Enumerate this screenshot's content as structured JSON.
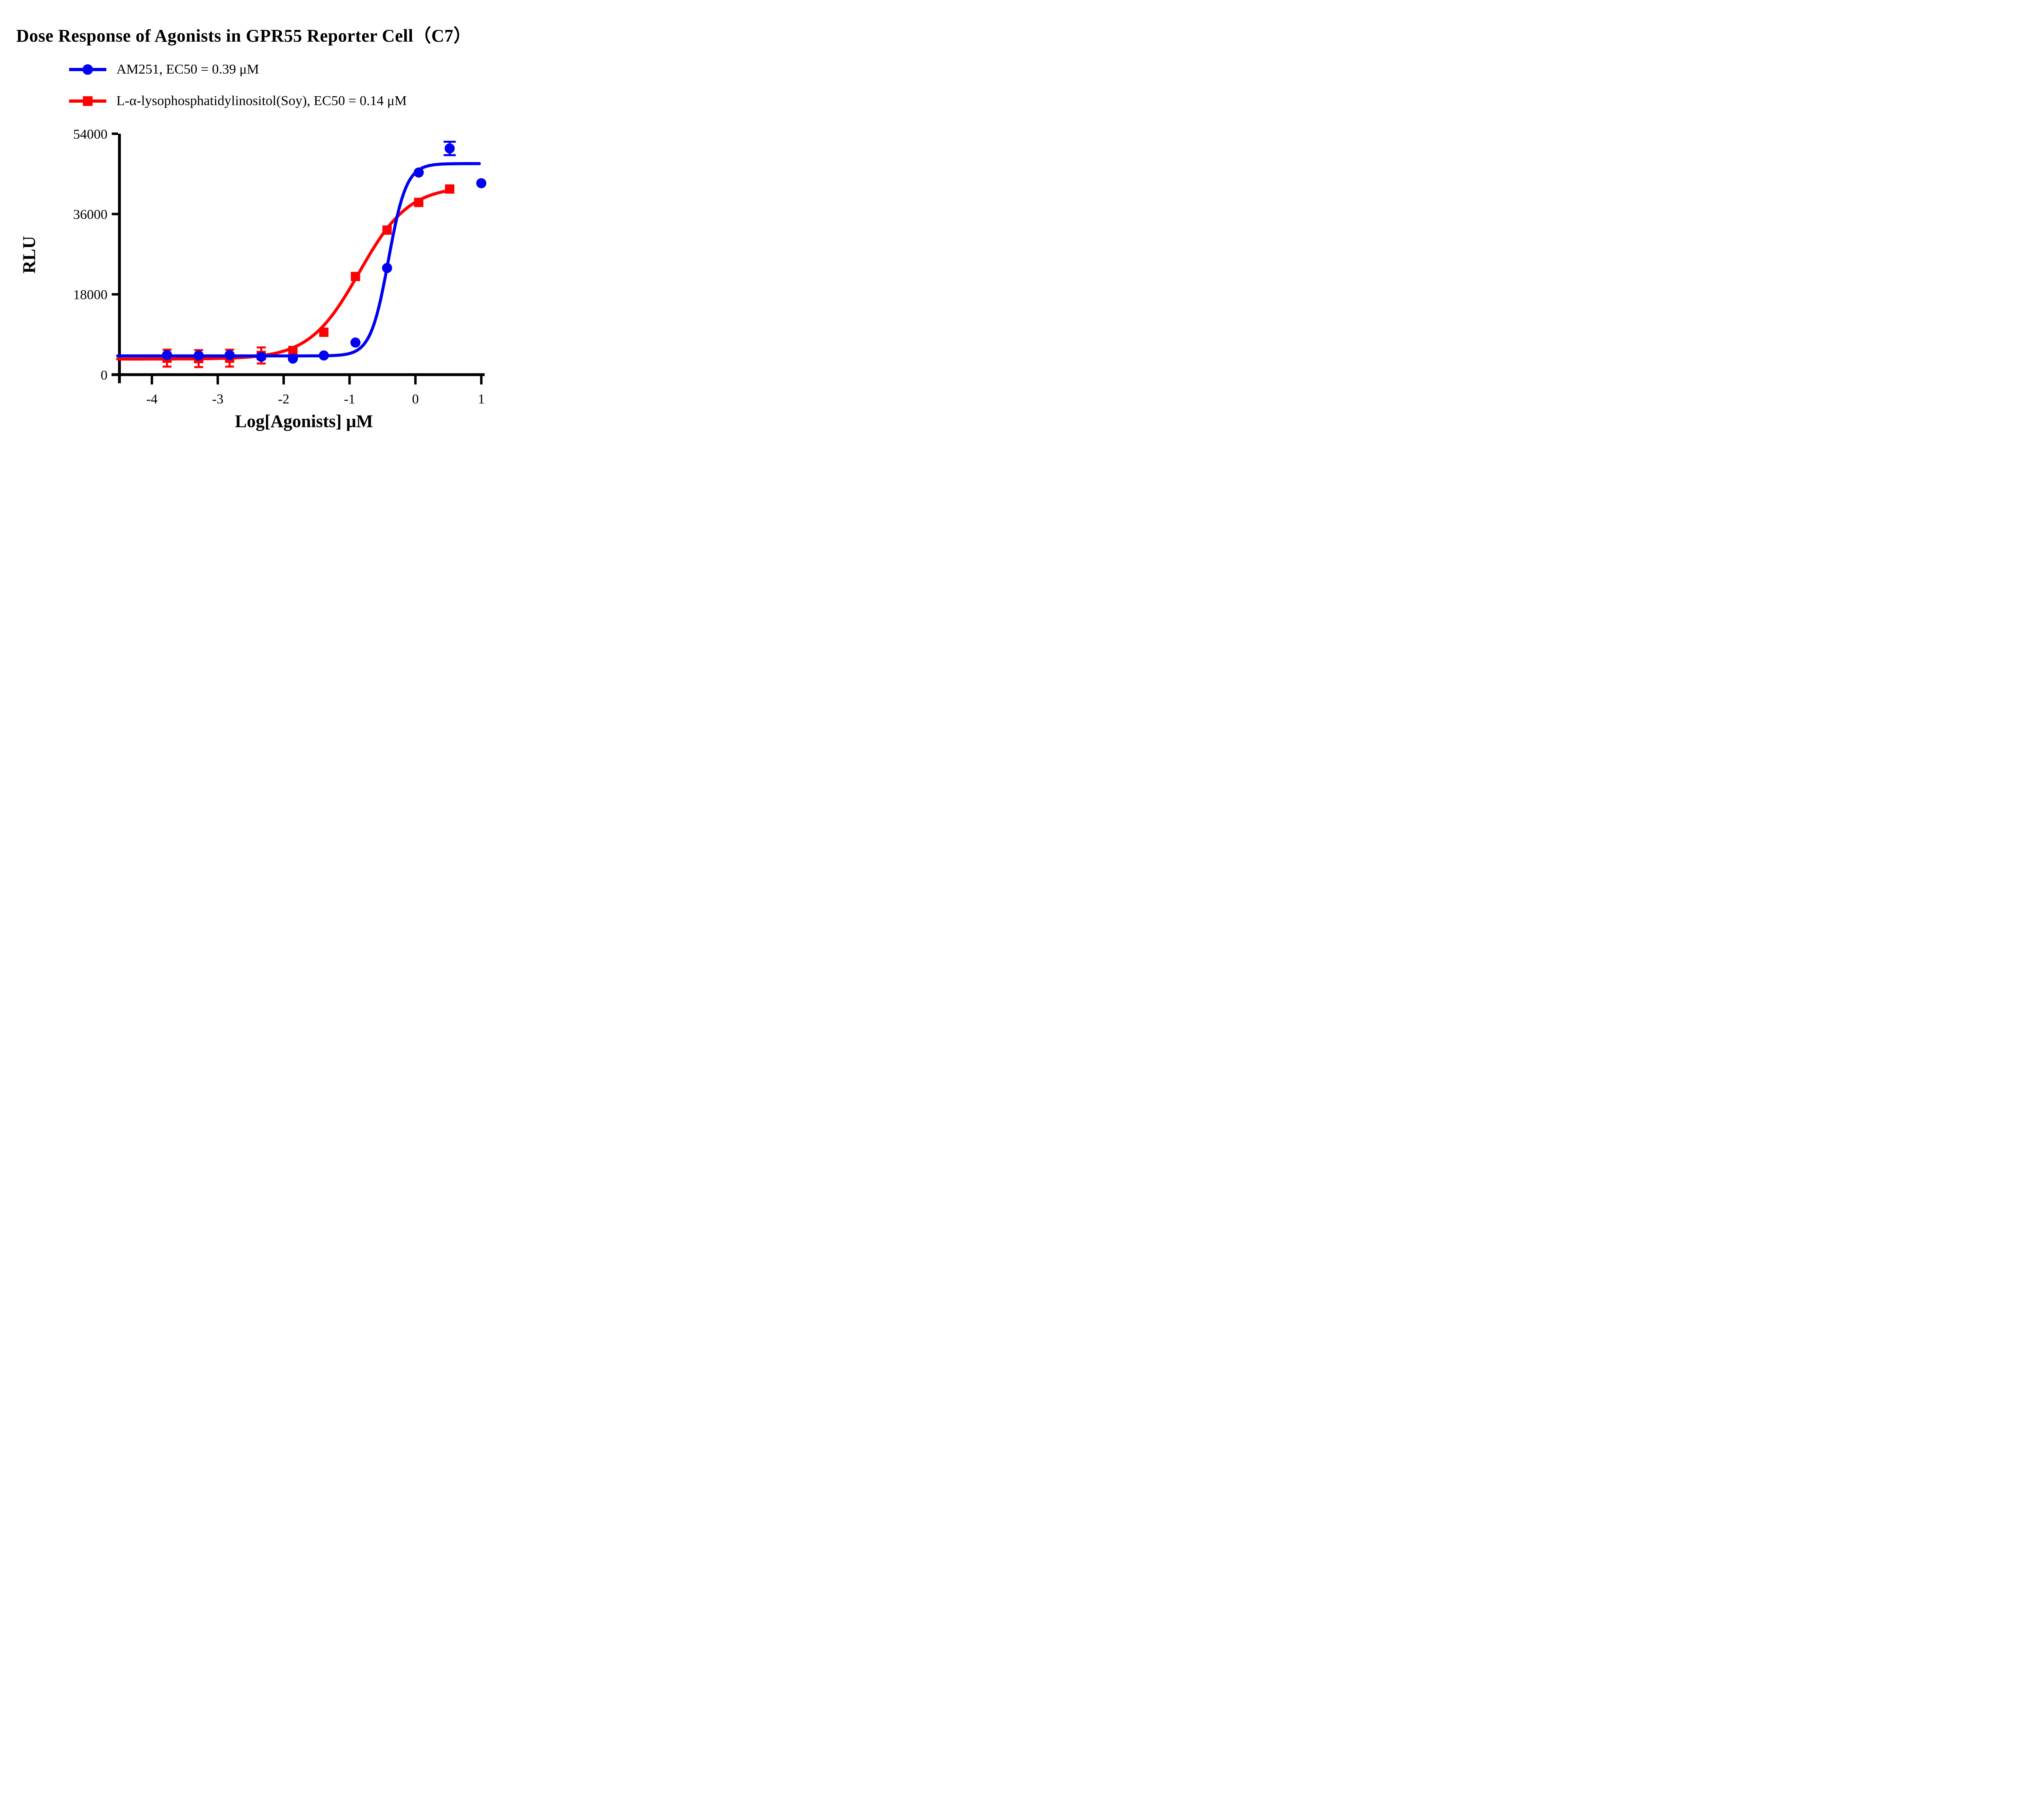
{
  "title": "Dose Response of Agonists in GPR55 Reporter Cell（C7）",
  "legend": {
    "items": [
      {
        "label": "AM251, EC50 = 0.39 μM",
        "marker": "circle",
        "color": "#0000F2"
      },
      {
        "label": "L-α-lysophosphatidylinositol(Soy), EC50 = 0.14 μM",
        "marker": "square",
        "color": "#FF0000"
      }
    ]
  },
  "chart_data": {
    "type": "scatter",
    "title": "Dose Response of Agonists in GPR55 Reporter Cell（C7）",
    "xlabel": "Log[Agonists] μM",
    "ylabel": "RLU",
    "xlim": [
      -4.52,
      1.15
    ],
    "ylim": [
      0,
      54000
    ],
    "xticks": [
      -4,
      -3,
      -2,
      -1,
      0,
      1
    ],
    "yticks": [
      0,
      18000,
      36000,
      54000
    ],
    "grid": false,
    "legend_position": "top-left",
    "axis_color": "#000000",
    "series": [
      {
        "name": "L-α-lysophosphatidylinositol(Soy)",
        "ec50_label": "EC50 = 0.14 μM",
        "color": "#FF0000",
        "marker": "square",
        "x": [
          -3.77,
          -3.29,
          -2.82,
          -2.34,
          -1.86,
          -1.39,
          -0.91,
          -0.43,
          0.05,
          0.52
        ],
        "y": [
          3700,
          3600,
          3700,
          4300,
          5400,
          9500,
          22000,
          32400,
          38600,
          41600
        ],
        "yerr": [
          1900,
          1900,
          1900,
          1800,
          null,
          null,
          null,
          null,
          null,
          null
        ],
        "fit": {
          "bottom": 3500,
          "top": 42300,
          "log_ec50": -0.854,
          "hill": 1.15,
          "x_start": -4.52,
          "x_end": 0.523
        }
      },
      {
        "name": "AM251",
        "ec50_label": "EC50 = 0.39 μM",
        "color": "#0000F2",
        "marker": "circle",
        "x": [
          -3.77,
          -3.29,
          -2.82,
          -2.34,
          -1.86,
          -1.39,
          -0.91,
          -0.43,
          0.05,
          0.52,
          1.0
        ],
        "y": [
          4400,
          4300,
          4400,
          4000,
          3600,
          4300,
          7200,
          23900,
          45300,
          50700,
          42900
        ],
        "yerr": [
          null,
          null,
          null,
          null,
          null,
          null,
          null,
          null,
          null,
          1500,
          null
        ],
        "fit": {
          "bottom": 4200,
          "top": 47300,
          "log_ec50": -0.409,
          "hill": 3.2,
          "x_start": -4.52,
          "x_end": 0.97
        }
      }
    ]
  }
}
